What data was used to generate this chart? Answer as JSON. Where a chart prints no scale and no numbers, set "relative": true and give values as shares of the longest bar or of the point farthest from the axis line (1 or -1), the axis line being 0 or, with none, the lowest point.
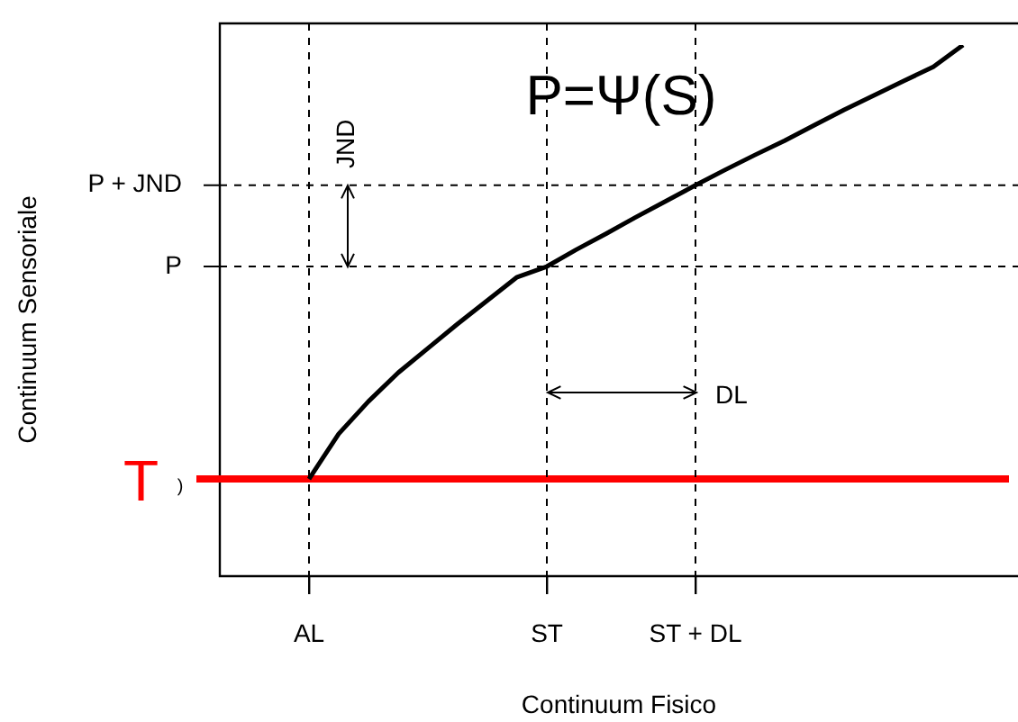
{
  "chart_data": {
    "type": "line",
    "relative": true,
    "xlabel": "Continuum Fisico",
    "categories": [
      null,
      null,
      null,
      "AL",
      null,
      null,
      null,
      null,
      null,
      null,
      null,
      "ST",
      null,
      null,
      null,
      null,
      "ST + DL",
      null,
      null,
      null,
      null,
      null,
      null,
      null,
      null,
      null,
      null
    ],
    "series": [
      {
        "color": "#000000",
        "values": [
          null,
          null,
          null,
          0.183,
          0.268,
          0.329,
          0.383,
          0.429,
          0.475,
          0.519,
          0.563,
          0.583,
          0.615,
          0.645,
          0.676,
          0.706,
          0.736,
          0.765,
          0.793,
          0.82,
          0.849,
          0.878,
          0.905,
          0.932,
          0.959,
          1.0,
          null
        ]
      }
    ],
    "ref_lines": [
      {
        "axis": "y",
        "value": 0.183,
        "label": "T",
        "color": "#ff0000",
        "line_style": "solid"
      },
      {
        "axis": "y",
        "value": 0.583,
        "label": "P",
        "color": "#000000",
        "line_style": "dashed"
      },
      {
        "axis": "y",
        "value": 0.736,
        "label": "P + JND",
        "color": "#000000",
        "line_style": "dashed"
      },
      {
        "axis": "x",
        "value": "AL",
        "color": "#000000",
        "line_style": "dashed"
      },
      {
        "axis": "x",
        "value": "ST",
        "color": "#000000",
        "line_style": "dashed"
      },
      {
        "axis": "x",
        "value": "ST + DL",
        "color": "#000000",
        "line_style": "dashed"
      }
    ],
    "annotations": [
      "P=Ψ(S)",
      "JND",
      "DL",
      ")",
      "Continuum Sensoriale"
    ],
    "tick_labels": "x",
    "grid": false,
    "legend": false,
    "marker": "none",
    "line_style": "solid"
  }
}
